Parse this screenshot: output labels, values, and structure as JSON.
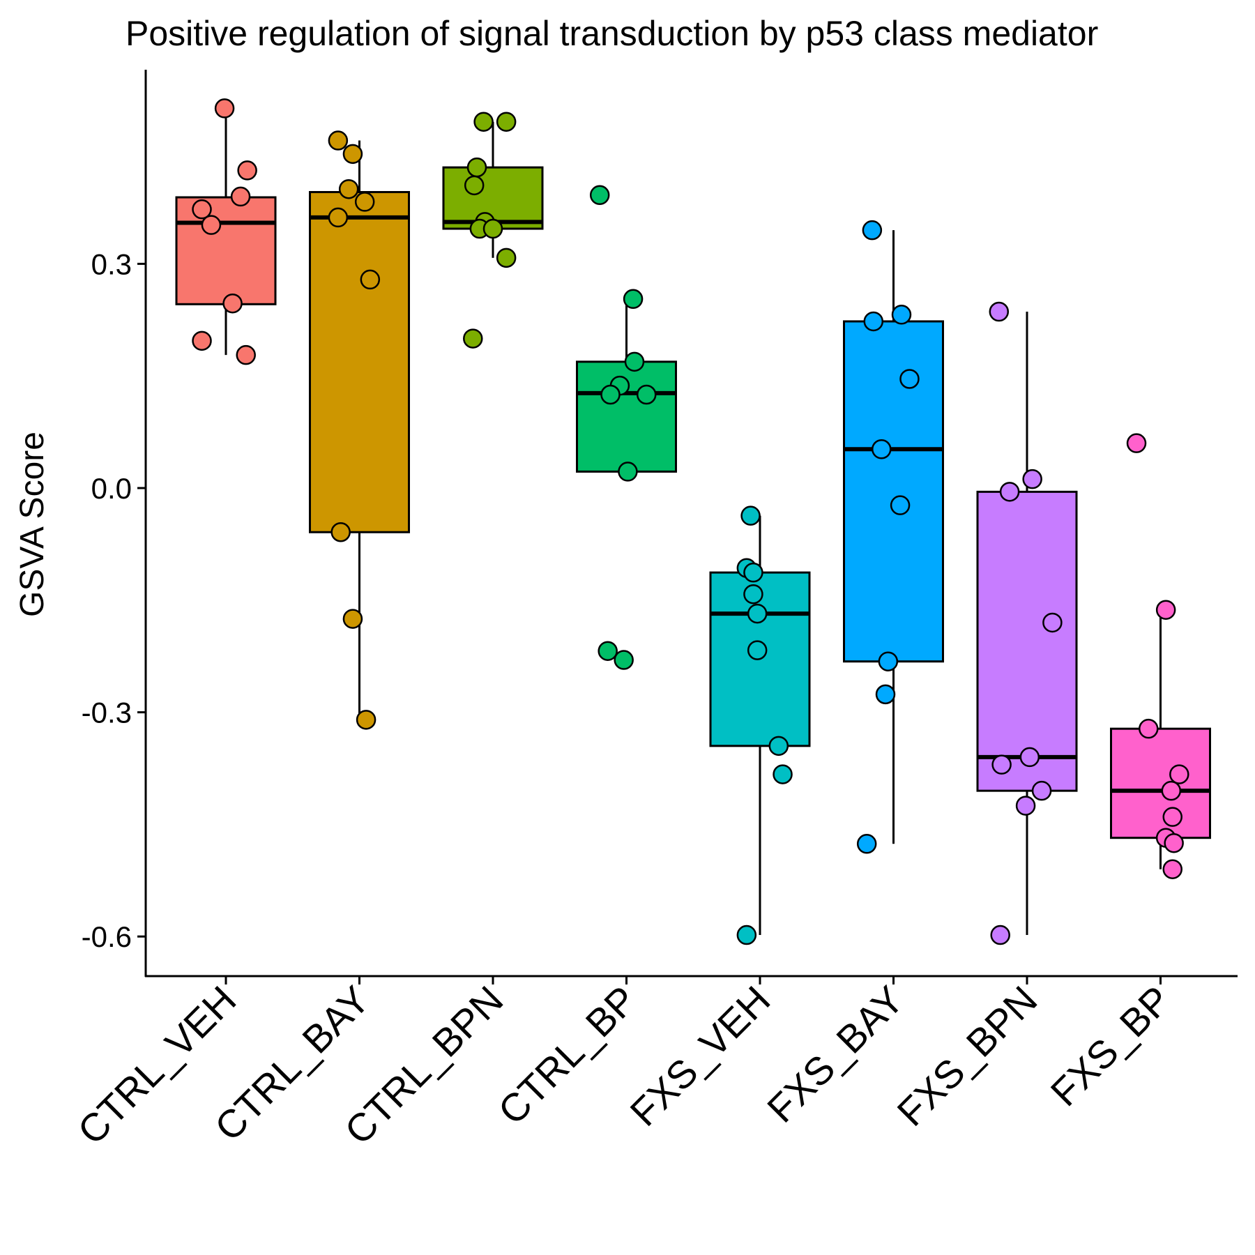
{
  "chart_data": {
    "type": "box",
    "title": "Positive regulation of signal transduction by p53 class mediator",
    "xlabel": "",
    "ylabel": "GSVA Score",
    "ylim": [
      -0.655,
      0.56
    ],
    "yticks": [
      {
        "value": 0.3,
        "label": "0.3"
      },
      {
        "value": 0.0,
        "label": "0.0"
      },
      {
        "value": -0.3,
        "label": "-0.3"
      },
      {
        "value": -0.6,
        "label": "-0.6"
      }
    ],
    "grid": false,
    "legend": "none",
    "categories": [
      "CTRL_VEH",
      "CTRL_BAY",
      "CTRL_BPN",
      "CTRL_BP",
      "FXS_VEH",
      "FXS_BAY",
      "FXS_BPN",
      "FXS_BP"
    ],
    "colors": [
      "#F8766D",
      "#CD9600",
      "#7CAE00",
      "#00BE67",
      "#00BFC4",
      "#00A9FF",
      "#C77CFF",
      "#FF61CC"
    ],
    "boxes": [
      {
        "q1": 0.246,
        "median": 0.355,
        "q3": 0.389,
        "whisker_low": 0.178,
        "whisker_high": 0.508
      },
      {
        "q1": -0.059,
        "median": 0.362,
        "q3": 0.396,
        "whisker_low": -0.31,
        "whisker_high": 0.465
      },
      {
        "q1": 0.347,
        "median": 0.356,
        "q3": 0.429,
        "whisker_low": 0.308,
        "whisker_high": 0.49
      },
      {
        "q1": 0.022,
        "median": 0.127,
        "q3": 0.169,
        "whisker_low": 0.022,
        "whisker_high": 0.253
      },
      {
        "q1": -0.345,
        "median": -0.168,
        "q3": -0.113,
        "whisker_low": -0.598,
        "whisker_high": -0.037
      },
      {
        "q1": -0.232,
        "median": 0.052,
        "q3": 0.223,
        "whisker_low": -0.476,
        "whisker_high": 0.345
      },
      {
        "q1": -0.405,
        "median": -0.36,
        "q3": -0.005,
        "whisker_low": -0.598,
        "whisker_high": 0.236
      },
      {
        "q1": -0.468,
        "median": -0.405,
        "q3": -0.322,
        "whisker_low": -0.51,
        "whisker_high": -0.163
      }
    ],
    "points": [
      {
        "x": -0.01,
        "y": 0.508
      },
      {
        "x": 0.16,
        "y": 0.425
      },
      {
        "x": 0.11,
        "y": 0.39
      },
      {
        "x": -0.18,
        "y": 0.373
      },
      {
        "x": -0.11,
        "y": 0.352
      },
      {
        "x": 0.05,
        "y": 0.247
      },
      {
        "x": -0.18,
        "y": 0.197
      },
      {
        "x": 0.15,
        "y": 0.178
      },
      {
        "x": -0.16,
        "y": 0.465
      },
      {
        "x": -0.05,
        "y": 0.447
      },
      {
        "x": -0.08,
        "y": 0.4
      },
      {
        "x": 0.04,
        "y": 0.383
      },
      {
        "x": -0.16,
        "y": 0.362
      },
      {
        "x": 0.08,
        "y": 0.279
      },
      {
        "x": -0.14,
        "y": -0.059
      },
      {
        "x": -0.05,
        "y": -0.175
      },
      {
        "x": 0.05,
        "y": -0.31
      },
      {
        "x": -0.07,
        "y": 0.49
      },
      {
        "x": 0.1,
        "y": 0.49
      },
      {
        "x": -0.12,
        "y": 0.429
      },
      {
        "x": -0.14,
        "y": 0.405
      },
      {
        "x": -0.06,
        "y": 0.356
      },
      {
        "x": -0.1,
        "y": 0.347
      },
      {
        "x": 0.0,
        "y": 0.347
      },
      {
        "x": 0.1,
        "y": 0.308
      },
      {
        "x": -0.15,
        "y": 0.2
      },
      {
        "x": -0.2,
        "y": 0.392
      },
      {
        "x": 0.05,
        "y": 0.253
      },
      {
        "x": 0.06,
        "y": 0.169
      },
      {
        "x": -0.05,
        "y": 0.137
      },
      {
        "x": -0.12,
        "y": 0.125
      },
      {
        "x": 0.15,
        "y": 0.125
      },
      {
        "x": 0.01,
        "y": 0.022
      },
      {
        "x": -0.14,
        "y": -0.218
      },
      {
        "x": -0.02,
        "y": -0.23
      },
      {
        "x": -0.07,
        "y": -0.037
      },
      {
        "x": -0.1,
        "y": -0.107
      },
      {
        "x": -0.05,
        "y": -0.113
      },
      {
        "x": -0.05,
        "y": -0.142
      },
      {
        "x": -0.02,
        "y": -0.168
      },
      {
        "x": -0.02,
        "y": -0.217
      },
      {
        "x": 0.14,
        "y": -0.345
      },
      {
        "x": 0.17,
        "y": -0.383
      },
      {
        "x": -0.1,
        "y": -0.598
      },
      {
        "x": -0.16,
        "y": 0.345
      },
      {
        "x": -0.15,
        "y": 0.223
      },
      {
        "x": 0.06,
        "y": 0.232
      },
      {
        "x": 0.12,
        "y": 0.146
      },
      {
        "x": -0.09,
        "y": 0.052
      },
      {
        "x": 0.05,
        "y": -0.023
      },
      {
        "x": -0.04,
        "y": -0.232
      },
      {
        "x": -0.06,
        "y": -0.276
      },
      {
        "x": -0.2,
        "y": -0.476
      },
      {
        "x": -0.21,
        "y": 0.236
      },
      {
        "x": 0.04,
        "y": 0.012
      },
      {
        "x": -0.13,
        "y": -0.005
      },
      {
        "x": 0.19,
        "y": -0.18
      },
      {
        "x": 0.02,
        "y": -0.36
      },
      {
        "x": -0.19,
        "y": -0.37
      },
      {
        "x": 0.11,
        "y": -0.405
      },
      {
        "x": -0.01,
        "y": -0.425
      },
      {
        "x": -0.2,
        "y": -0.598
      },
      {
        "x": -0.18,
        "y": 0.06
      },
      {
        "x": 0.04,
        "y": -0.163
      },
      {
        "x": -0.09,
        "y": -0.322
      },
      {
        "x": 0.14,
        "y": -0.383
      },
      {
        "x": 0.08,
        "y": -0.405
      },
      {
        "x": 0.09,
        "y": -0.44
      },
      {
        "x": 0.04,
        "y": -0.468
      },
      {
        "x": 0.1,
        "y": -0.475
      },
      {
        "x": 0.09,
        "y": -0.51
      }
    ],
    "point_group_sizes": [
      8,
      9,
      9,
      9,
      9,
      9,
      9,
      9
    ]
  }
}
